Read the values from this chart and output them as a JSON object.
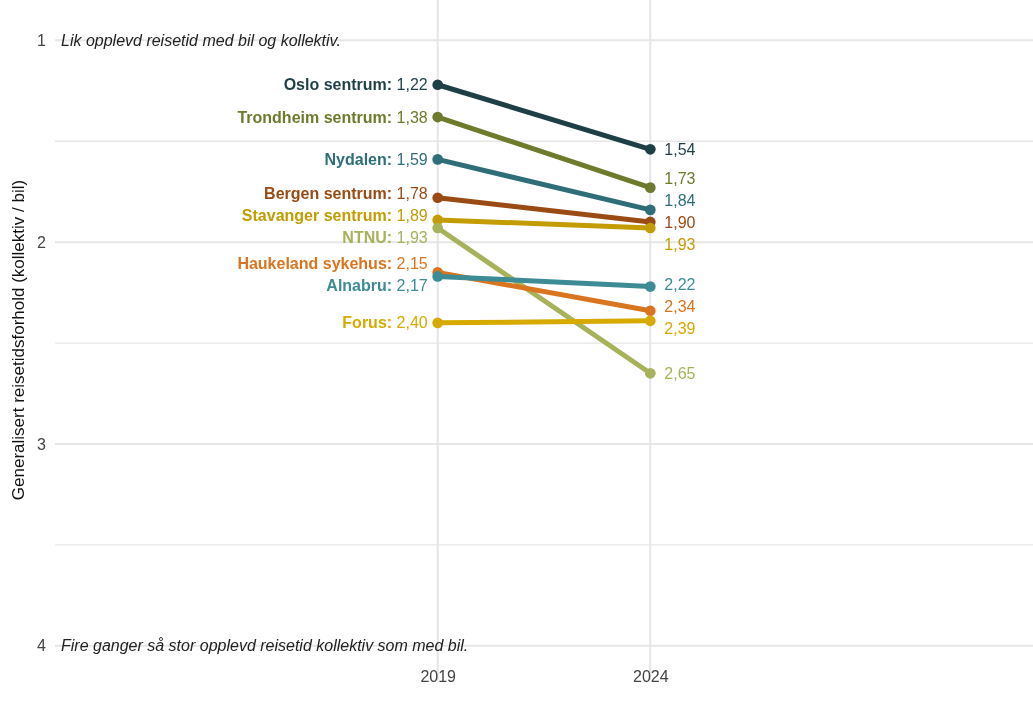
{
  "chart_data": {
    "type": "line",
    "ylabel": "Generalisert reisetidsforhold (kollektiv / bil)",
    "x": [
      2019,
      2024
    ],
    "xlim": [
      2010,
      2033
    ],
    "xticks": [
      2019,
      2024
    ],
    "ylim": [
      4.17,
      0.8
    ],
    "yticks": [
      1,
      {
        "value": 1.5,
        "label": null
      },
      2,
      {
        "value": 2.5,
        "label": null
      },
      3,
      {
        "value": 3.5,
        "label": null
      },
      4
    ],
    "grid": true,
    "marker": "circle",
    "line_style": "solid",
    "annotations": [
      "Lik opplevd reisetid med bil og kollektiv.",
      "Fire ganger så stor opplevd reisetid kollektiv som med bil."
    ],
    "series": [
      {
        "name": "Oslo sentrum:",
        "color": "#1f3f47",
        "values": [
          1.22,
          1.54
        ],
        "value_labels": [
          "1,22",
          "1,54"
        ]
      },
      {
        "name": "Trondheim sentrum:",
        "color": "#6e7a2c",
        "values": [
          1.38,
          1.73
        ],
        "value_labels": [
          "1,38",
          "1,73"
        ]
      },
      {
        "name": "Nydalen:",
        "color": "#2f6e78",
        "values": [
          1.59,
          1.84
        ],
        "value_labels": [
          "1,59",
          "1,84"
        ]
      },
      {
        "name": "Bergen sentrum:",
        "color": "#9a4b14",
        "values": [
          1.78,
          1.9
        ],
        "value_labels": [
          "1,78",
          "1,90"
        ]
      },
      {
        "name": "Stavanger sentrum:",
        "color": "#c29c00",
        "values": [
          1.89,
          1.93
        ],
        "value_labels": [
          "1,89",
          "1,93"
        ]
      },
      {
        "name": "NTNU:",
        "color": "#a7b25a",
        "values": [
          1.93,
          2.65
        ],
        "value_labels": [
          "1,93",
          "2,65"
        ]
      },
      {
        "name": "Haukeland sykehus:",
        "color": "#d9751f",
        "values": [
          2.15,
          2.34
        ],
        "value_labels": [
          "2,15",
          "2,34"
        ]
      },
      {
        "name": "Alnabru:",
        "color": "#3c8b95",
        "values": [
          2.17,
          2.22
        ],
        "value_labels": [
          "2,17",
          "2,22"
        ]
      },
      {
        "name": "Forus:",
        "color": "#d6aa00",
        "values": [
          2.4,
          2.39
        ],
        "value_labels": [
          "2,40",
          "2,39"
        ]
      }
    ]
  }
}
